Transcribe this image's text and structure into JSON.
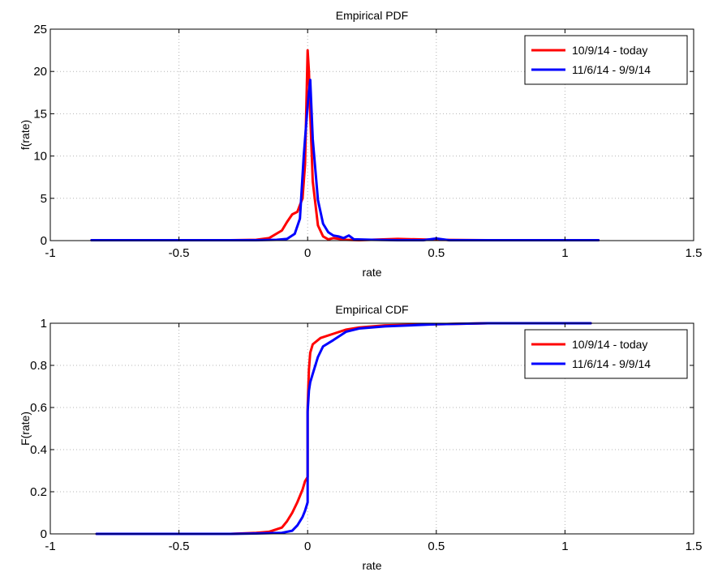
{
  "chart_data": [
    {
      "type": "line",
      "title": "Empirical PDF",
      "xlabel": "rate",
      "ylabel": "f(rate)",
      "xlim": [
        -1,
        1.5
      ],
      "ylim": [
        0,
        25
      ],
      "xticks": [
        -1,
        -0.5,
        0,
        0.5,
        1,
        1.5
      ],
      "xtick_labels": [
        "-1",
        "-0.5",
        "0",
        "0.5",
        "1",
        "1.5"
      ],
      "yticks": [
        0,
        5,
        10,
        15,
        20,
        25
      ],
      "ytick_labels": [
        "0",
        "5",
        "10",
        "15",
        "20",
        "25"
      ],
      "grid": true,
      "legend_position": "top-right",
      "series": [
        {
          "name": "10/9/14 - today",
          "color": "#ff0000",
          "x": [
            -0.84,
            -0.7,
            -0.5,
            -0.3,
            -0.2,
            -0.15,
            -0.1,
            -0.08,
            -0.06,
            -0.04,
            -0.02,
            -0.01,
            0.0,
            0.005,
            0.01,
            0.02,
            0.04,
            0.06,
            0.08,
            0.1,
            0.15,
            0.2,
            0.35,
            0.5,
            0.7,
            1.0,
            1.13
          ],
          "y": [
            0.05,
            0.05,
            0.05,
            0.05,
            0.1,
            0.3,
            1.2,
            2.2,
            3.1,
            3.4,
            5.0,
            9.0,
            22.5,
            20.0,
            15.0,
            7.0,
            1.8,
            0.5,
            0.15,
            0.3,
            0.1,
            0.05,
            0.2,
            0.1,
            0.05,
            0.05,
            0.05
          ]
        },
        {
          "name": "11/6/14 - 9/9/14",
          "color": "#0000ff",
          "x": [
            -0.84,
            -0.6,
            -0.4,
            -0.2,
            -0.12,
            -0.08,
            -0.05,
            -0.03,
            -0.015,
            0.0,
            0.01,
            0.02,
            0.04,
            0.06,
            0.08,
            0.1,
            0.12,
            0.14,
            0.16,
            0.18,
            0.25,
            0.35,
            0.45,
            0.5,
            0.55,
            0.7,
            1.0,
            1.13
          ],
          "y": [
            0.05,
            0.05,
            0.05,
            0.05,
            0.1,
            0.2,
            0.8,
            2.6,
            10.0,
            16.0,
            19.0,
            12.0,
            4.8,
            2.0,
            1.0,
            0.6,
            0.5,
            0.3,
            0.6,
            0.15,
            0.1,
            0.05,
            0.05,
            0.25,
            0.05,
            0.05,
            0.05,
            0.05
          ]
        }
      ]
    },
    {
      "type": "line",
      "title": "Empirical CDF",
      "xlabel": "rate",
      "ylabel": "F(rate)",
      "xlim": [
        -1,
        1.5
      ],
      "ylim": [
        0,
        1
      ],
      "xticks": [
        -1,
        -0.5,
        0,
        0.5,
        1,
        1.5
      ],
      "xtick_labels": [
        "-1",
        "-0.5",
        "0",
        "0.5",
        "1",
        "1.5"
      ],
      "yticks": [
        0,
        0.2,
        0.4,
        0.6,
        0.8,
        1
      ],
      "ytick_labels": [
        "0",
        "0.2",
        "0.4",
        "0.6",
        "0.8",
        "1"
      ],
      "grid": true,
      "legend_position": "top-right",
      "series": [
        {
          "name": "10/9/14 - today",
          "color": "#ff0000",
          "x": [
            -0.82,
            -0.3,
            -0.2,
            -0.15,
            -0.1,
            -0.08,
            -0.06,
            -0.04,
            -0.02,
            -0.01,
            0.0,
            0.0,
            0.005,
            0.01,
            0.02,
            0.05,
            0.1,
            0.15,
            0.2,
            0.3,
            0.5,
            0.7,
            1.1
          ],
          "y": [
            0.0,
            0.0,
            0.005,
            0.01,
            0.03,
            0.06,
            0.1,
            0.15,
            0.21,
            0.25,
            0.27,
            0.6,
            0.78,
            0.86,
            0.9,
            0.93,
            0.95,
            0.97,
            0.98,
            0.99,
            0.995,
            1.0,
            1.0
          ]
        },
        {
          "name": "11/6/14 - 9/9/14",
          "color": "#0000ff",
          "x": [
            -0.82,
            -0.3,
            -0.2,
            -0.1,
            -0.06,
            -0.04,
            -0.02,
            -0.01,
            0.0,
            0.0,
            0.005,
            0.01,
            0.02,
            0.04,
            0.06,
            0.1,
            0.15,
            0.2,
            0.3,
            0.5,
            0.7,
            1.1
          ],
          "y": [
            0.0,
            0.0,
            0.002,
            0.005,
            0.015,
            0.04,
            0.08,
            0.11,
            0.15,
            0.58,
            0.68,
            0.72,
            0.76,
            0.84,
            0.89,
            0.92,
            0.96,
            0.975,
            0.985,
            0.995,
            1.0,
            1.0
          ]
        }
      ]
    }
  ]
}
